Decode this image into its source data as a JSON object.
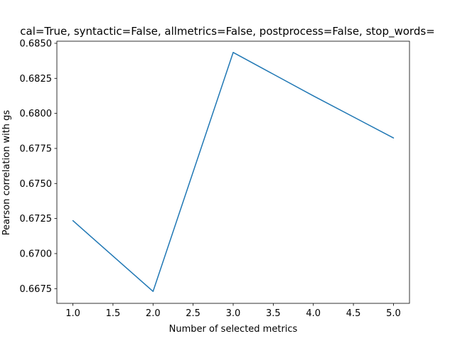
{
  "chart_data": {
    "type": "line",
    "title": "cal=True, syntactic=False, allmetrics=False, postprocess=False, stop_words=",
    "xlabel": "Number of selected metrics",
    "ylabel": "Pearson correlation with gs",
    "x": [
      1,
      2,
      3,
      4,
      5
    ],
    "series": [
      {
        "values": [
          0.67235,
          0.6673,
          0.68435,
          0.68125,
          0.67825
        ]
      }
    ],
    "xlim": [
      0.8,
      5.2
    ],
    "ylim": [
      0.66645,
      0.68515
    ],
    "xticks": [
      1.0,
      1.5,
      2.0,
      2.5,
      3.0,
      3.5,
      4.0,
      4.5,
      5.0
    ],
    "xtick_labels": [
      "1.0",
      "1.5",
      "2.0",
      "2.5",
      "3.0",
      "3.5",
      "4.0",
      "4.5",
      "5.0"
    ],
    "yticks": [
      0.6675,
      0.67,
      0.6725,
      0.675,
      0.6775,
      0.68,
      0.6825,
      0.685
    ],
    "ytick_labels": [
      "0.6675",
      "0.6700",
      "0.6725",
      "0.6750",
      "0.6775",
      "0.6800",
      "0.6825",
      "0.6850"
    ],
    "grid": false,
    "line_color": "#1f77b4"
  }
}
